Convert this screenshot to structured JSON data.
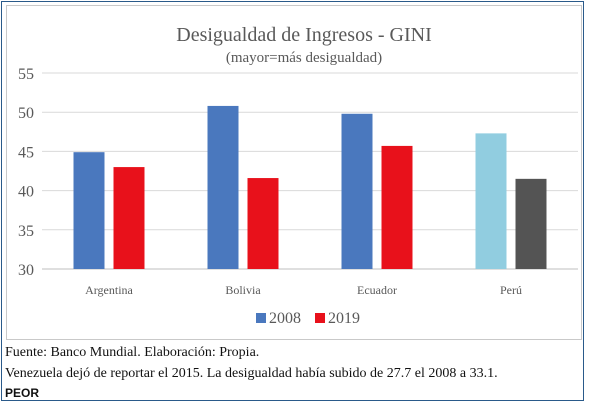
{
  "chart_data": {
    "type": "bar",
    "title": "Desigualdad de Ingresos - GINI",
    "subtitle": "(mayor=más desigualdad)",
    "categories": [
      "Argentina",
      "Bolivia",
      "Ecuador",
      "Perú"
    ],
    "series": [
      {
        "name": "2008",
        "values": [
          44.9,
          50.8,
          49.8,
          47.3
        ]
      },
      {
        "name": "2019",
        "values": [
          43.0,
          41.6,
          45.7,
          41.5
        ]
      }
    ],
    "ylim": [
      30,
      55
    ],
    "yticks": [
      "30",
      "35",
      "40",
      "45",
      "50",
      "55"
    ],
    "grid": true,
    "legend": "bottom",
    "colors": {
      "2008": "#4a78be",
      "2019": "#e8111b",
      "peru_2008": "#91cde0",
      "peru_2019": "#545454"
    }
  },
  "footer": {
    "source": "Fuente: Banco Mundial. Elaboración: Propia.",
    "note": "Venezuela dejó de reportar el 2015. La desigualdad había subido de 27.7 el 2008 a 33.1.",
    "tag": "PEOR"
  }
}
